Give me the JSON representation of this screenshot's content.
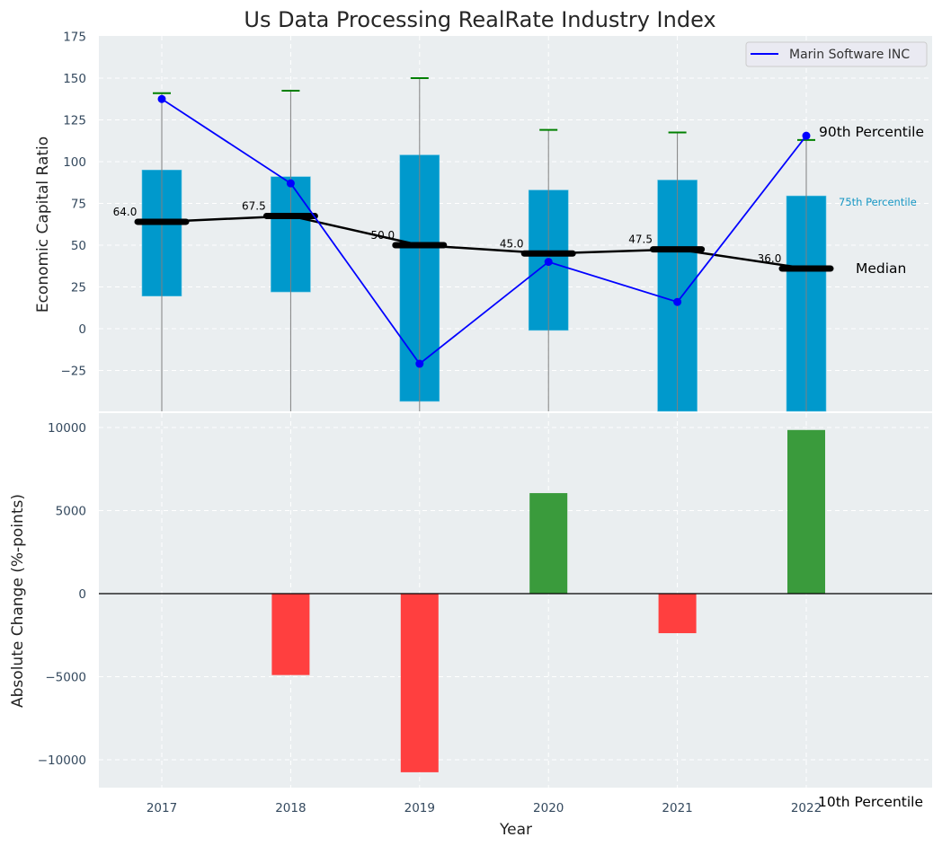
{
  "chart_data": [
    {
      "type": "box",
      "title": "Us Data Processing RealRate Industry Index",
      "xlabel": "",
      "ylabel": "Economic Capital Ratio",
      "ylim": [
        -50,
        175
      ],
      "yticks": [
        -25,
        0,
        25,
        50,
        75,
        100,
        125,
        150,
        175
      ],
      "ytick_labels": [
        "−25",
        "0",
        "25",
        "50",
        "75",
        "100",
        "125",
        "150",
        "175"
      ],
      "categories": [
        "2017",
        "2018",
        "2019",
        "2020",
        "2021",
        "2022"
      ],
      "grid": true,
      "boxes": {
        "p25": [
          19.5,
          22,
          -43.5,
          -1,
          -50,
          -50
        ],
        "p75": [
          95,
          91,
          104,
          83,
          89,
          79.5
        ],
        "p90": [
          141,
          142.5,
          150,
          119,
          117.5,
          113
        ],
        "median": [
          64.0,
          67.5,
          50.0,
          45.0,
          47.5,
          36.0
        ],
        "median_labels": [
          "64.0",
          "67.5",
          "50.0",
          "45.0",
          "47.5",
          "36.0"
        ]
      },
      "series": [
        {
          "name": "Marin Software INC",
          "values": [
            137.5,
            87,
            -21,
            40,
            16,
            115.5
          ],
          "color": "#0000ff"
        }
      ],
      "legend": {
        "position": "top-right",
        "entries": [
          "Marin Software INC"
        ]
      },
      "annotations": {
        "p90": "90th Percentile",
        "p75": "75th Percentile",
        "median": "Median",
        "p10": "10th Percentile"
      },
      "colors": {
        "box": "#0099cc",
        "cap": "#008000",
        "median": "#000000",
        "whisker": "#808080",
        "background": "#eaeef0"
      }
    },
    {
      "type": "bar",
      "title": "",
      "xlabel": "Year",
      "ylabel": "Absolute Change (%-points)",
      "ylim": [
        -11800,
        10800
      ],
      "yticks": [
        -10000,
        -5000,
        0,
        5000,
        10000
      ],
      "ytick_labels": [
        "−10000",
        "−5000",
        "0",
        "5000",
        "10000"
      ],
      "categories": [
        "2017",
        "2018",
        "2019",
        "2020",
        "2021",
        "2022"
      ],
      "values": [
        0,
        -4900,
        -10750,
        6050,
        -2380,
        9850
      ],
      "grid": true,
      "colors": {
        "positive": "#3a9b3c",
        "negative": "#ff3f3f"
      }
    }
  ]
}
